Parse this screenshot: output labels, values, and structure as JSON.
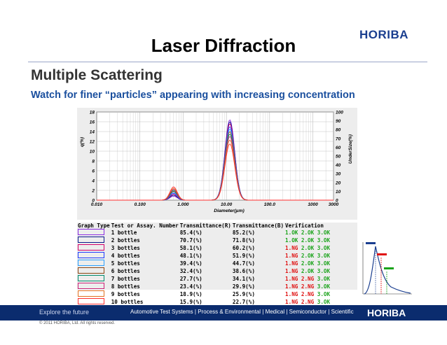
{
  "header": {
    "title": "Laser Diffraction",
    "logo": "HORIBA",
    "subtitle": "Multiple Scattering",
    "lead": "Watch for finer “particles” appearing with increasing concentration"
  },
  "chart_data": {
    "type": "line",
    "xlabel": "Diameter(µm)",
    "ylabel_left": "q(%)",
    "ylabel_right": "UnderSize(%)",
    "x_scale": "log",
    "xlim": [
      0.01,
      3000
    ],
    "x_ticks": [
      "0.010",
      "0.100",
      "1.000",
      "10.00",
      "100.0",
      "1000",
      "3000"
    ],
    "x_tick_values": [
      0.01,
      0.1,
      1,
      10,
      100,
      1000,
      3000
    ],
    "ylim_left": [
      0,
      18
    ],
    "y_ticks_left": [
      "0",
      "2",
      "4",
      "6",
      "8",
      "10",
      "12",
      "14",
      "16",
      "18"
    ],
    "ylim_right": [
      0,
      100
    ],
    "y_ticks_right": [
      "0",
      "10",
      "20",
      "30",
      "40",
      "50",
      "60",
      "70",
      "80",
      "90",
      "100"
    ],
    "grid": true,
    "series": [
      {
        "name": "1 bottle",
        "color": "#8b2be2",
        "peak": 16.4,
        "fine": 0.8
      },
      {
        "name": "2 bottles",
        "color": "#0a1a8a",
        "peak": 16.0,
        "fine": 1.0
      },
      {
        "name": "3 bottles",
        "color": "#d4006a",
        "peak": 15.6,
        "fine": 1.2
      },
      {
        "name": "4 bottles",
        "color": "#1e3cff",
        "peak": 15.0,
        "fine": 1.4
      },
      {
        "name": "5 bottles",
        "color": "#2aa0ff",
        "peak": 14.5,
        "fine": 1.6
      },
      {
        "name": "6 bottles",
        "color": "#8b4513",
        "peak": 14.0,
        "fine": 1.8
      },
      {
        "name": "7 bottles",
        "color": "#008b6b",
        "peak": 13.5,
        "fine": 2.0
      },
      {
        "name": "8 bottles",
        "color": "#cc2277",
        "peak": 13.0,
        "fine": 2.2
      },
      {
        "name": "9 bottles",
        "color": "#e07020",
        "peak": 12.3,
        "fine": 2.4
      },
      {
        "name": "10 bottles",
        "color": "#ff3030",
        "peak": 11.5,
        "fine": 2.7
      }
    ]
  },
  "results_table": {
    "headers": [
      "Graph Type",
      "Test or Assay. Number",
      "Transmittance(R)",
      "Transmittance(B)",
      "Verification"
    ],
    "rows": [
      {
        "label": "1 bottle",
        "tr": "85.4(%)",
        "tb": "85.2(%)",
        "v1": "1.OK",
        "v2": "2.OK",
        "v3": "3.OK"
      },
      {
        "label": "2 bottles",
        "tr": "70.7(%)",
        "tb": "71.8(%)",
        "v1": "1.OK",
        "v2": "2.OK",
        "v3": "3.OK"
      },
      {
        "label": "3 bottles",
        "tr": "58.1(%)",
        "tb": "60.2(%)",
        "v1": "1.NG",
        "v2": "2.OK",
        "v3": "3.OK"
      },
      {
        "label": "4 bottles",
        "tr": "48.1(%)",
        "tb": "51.9(%)",
        "v1": "1.NG",
        "v2": "2.OK",
        "v3": "3.OK"
      },
      {
        "label": "5 bottles",
        "tr": "39.4(%)",
        "tb": "44.7(%)",
        "v1": "1.NG",
        "v2": "2.OK",
        "v3": "3.OK"
      },
      {
        "label": "6 bottles",
        "tr": "32.4(%)",
        "tb": "38.6(%)",
        "v1": "1.NG",
        "v2": "2.OK",
        "v3": "3.OK"
      },
      {
        "label": "7 bottles",
        "tr": "27.7(%)",
        "tb": "34.1(%)",
        "v1": "1.NG",
        "v2": "2.NG",
        "v3": "3.OK"
      },
      {
        "label": "8 bottles",
        "tr": "23.4(%)",
        "tb": "29.9(%)",
        "v1": "1.NG",
        "v2": "2.NG",
        "v3": "3.OK"
      },
      {
        "label": "9 bottles",
        "tr": "18.9(%)",
        "tb": "25.9(%)",
        "v1": "1.NG",
        "v2": "2.NG",
        "v3": "3.OK"
      },
      {
        "label": "10 bottles",
        "tr": "15.9(%)",
        "tb": "22.7(%)",
        "v1": "1.NG",
        "v2": "2.NG",
        "v3": "3.OK"
      }
    ]
  },
  "footer": {
    "explore": "Explore the future",
    "nav": [
      "Automotive Test Systems",
      "Process & Environmental",
      "Medical",
      "Semiconductor",
      "Scientific"
    ],
    "logo": "HORIBA",
    "copyright": "© 2011 HORIBA, Ltd. All rights reserved."
  }
}
